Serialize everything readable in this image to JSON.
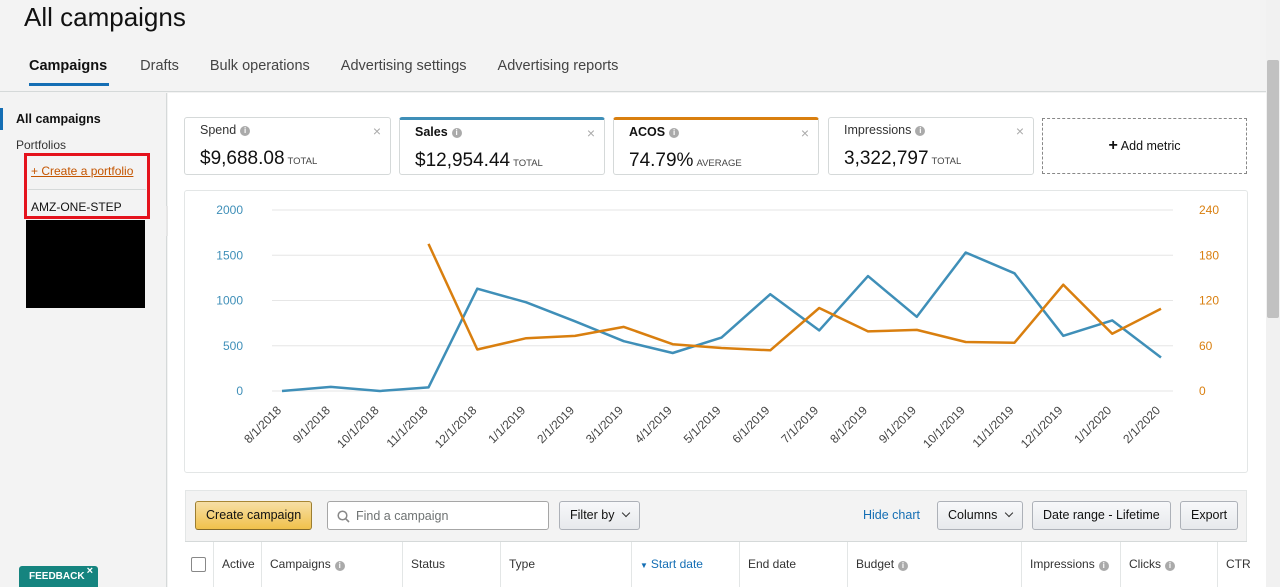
{
  "page": {
    "title": "All campaigns"
  },
  "tabs": [
    {
      "label": "Campaigns",
      "active": true
    },
    {
      "label": "Drafts"
    },
    {
      "label": "Bulk operations"
    },
    {
      "label": "Advertising settings"
    },
    {
      "label": "Advertising reports"
    }
  ],
  "sidebar": {
    "all_campaigns": "All campaigns",
    "portfolios": "Portfolios",
    "create_portfolio": "+ Create a portfolio",
    "portfolio_item": "AMZ-ONE-STEP",
    "collapse": "«"
  },
  "metrics": [
    {
      "label": "Spend",
      "value": "$9,688.08",
      "unit": "TOTAL"
    },
    {
      "label": "Sales",
      "value": "$12,954.44",
      "unit": "TOTAL",
      "color": "#3f8fb8"
    },
    {
      "label": "ACOS",
      "value": "74.79%",
      "unit": "AVERAGE",
      "color": "#d97f0f"
    },
    {
      "label": "Impressions",
      "value": "3,322,797",
      "unit": "TOTAL"
    }
  ],
  "add_metric": "Add metric",
  "chart_data": {
    "type": "line",
    "x": [
      "8/1/2018",
      "9/1/2018",
      "10/1/2018",
      "11/1/2018",
      "12/1/2018",
      "1/1/2019",
      "2/1/2019",
      "3/1/2019",
      "4/1/2019",
      "5/1/2019",
      "6/1/2019",
      "7/1/2019",
      "8/1/2019",
      "9/1/2019",
      "10/1/2019",
      "11/1/2019",
      "12/1/2019",
      "1/1/2020",
      "2/1/2020"
    ],
    "series": [
      {
        "color": "#3f8fb8",
        "axis": "left",
        "values": [
          0,
          45,
          0,
          40,
          1130,
          980,
          770,
          550,
          420,
          590,
          1070,
          670,
          1270,
          820,
          1530,
          1300,
          610,
          780,
          370
        ]
      },
      {
        "color": "#d97f0f",
        "axis": "right",
        "values": [
          null,
          null,
          null,
          195,
          55,
          70,
          73,
          85,
          62,
          57,
          54,
          110,
          79,
          81,
          65,
          64,
          141,
          76,
          109
        ]
      }
    ],
    "left_axis": {
      "ticks": [
        "2000",
        "1500",
        "1000",
        "500",
        "0"
      ],
      "range": [
        0,
        2000
      ]
    },
    "right_axis": {
      "ticks": [
        "240",
        "180",
        "120",
        "60",
        "0"
      ],
      "range": [
        0,
        240
      ]
    },
    "grid": true
  },
  "toolbar": {
    "create_campaign": "Create campaign",
    "search_placeholder": "Find a campaign",
    "filter_by": "Filter by",
    "hide_chart": "Hide chart",
    "columns": "Columns",
    "date_range": "Date range - Lifetime",
    "export": "Export"
  },
  "table": {
    "columns": [
      "Active",
      "Campaigns",
      "Status",
      "Type",
      "Start date",
      "End date",
      "Budget",
      "Impressions",
      "Clicks",
      "CTR"
    ]
  },
  "feedback": {
    "label": "FEEDBACK",
    "close": "×"
  }
}
